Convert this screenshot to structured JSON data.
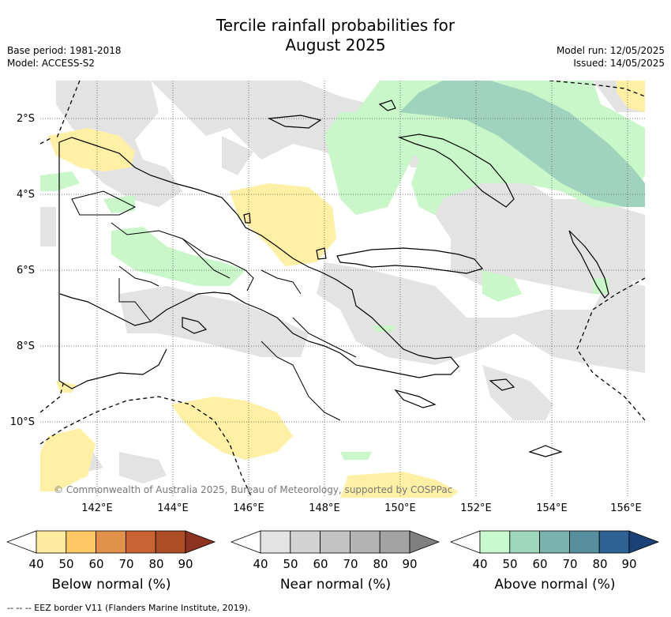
{
  "header": {
    "title_line1": "Tercile rainfall probabilities for",
    "title_line2": "August 2025",
    "base_period": "Base period: 1981-2018",
    "model": "Model: ACCESS-S2",
    "model_run": "Model run: 12/05/2025",
    "issued": "Issued: 14/05/2025"
  },
  "map": {
    "lat_labels": [
      "2°S",
      "4°S",
      "6°S",
      "8°S",
      "10°S"
    ],
    "lon_labels": [
      "142°E",
      "144°E",
      "146°E",
      "148°E",
      "150°E",
      "152°E",
      "154°E",
      "156°E"
    ],
    "copyright": "© Commonwealth of Australia 2025, Bureau of Meteorology, supported by COSPPac",
    "colors": {
      "near_normal_shading": "#e3e3e3",
      "below_normal_shading": "#fff0a6",
      "above_normal_shading": "#c9f7c9",
      "above_normal_50": "#9fd3bd"
    }
  },
  "legends": [
    {
      "title": "Below normal (%)",
      "ticks": [
        "40",
        "50",
        "60",
        "70",
        "80",
        "90"
      ],
      "colors": [
        "#ffffff",
        "#ffeba0",
        "#fec965",
        "#e0914a",
        "#c96432",
        "#ad4d28",
        "#8b3220"
      ]
    },
    {
      "title": "Near normal (%)",
      "ticks": [
        "40",
        "50",
        "60",
        "70",
        "80",
        "90"
      ],
      "colors": [
        "#ffffff",
        "#e3e3e3",
        "#d3d3d3",
        "#c3c3c3",
        "#b3b3b3",
        "#a3a3a3",
        "#808080"
      ]
    },
    {
      "title": "Above normal (%)",
      "ticks": [
        "40",
        "50",
        "60",
        "70",
        "80",
        "90"
      ],
      "colors": [
        "#ffffff",
        "#c9f9cf",
        "#9fd7bd",
        "#7ab2ad",
        "#578f9e",
        "#2e6294",
        "#1b4276"
      ]
    }
  ],
  "footer": {
    "eez_note": "--  --  -- EEZ border V11 (Flanders Marine Institute, 2019)."
  }
}
